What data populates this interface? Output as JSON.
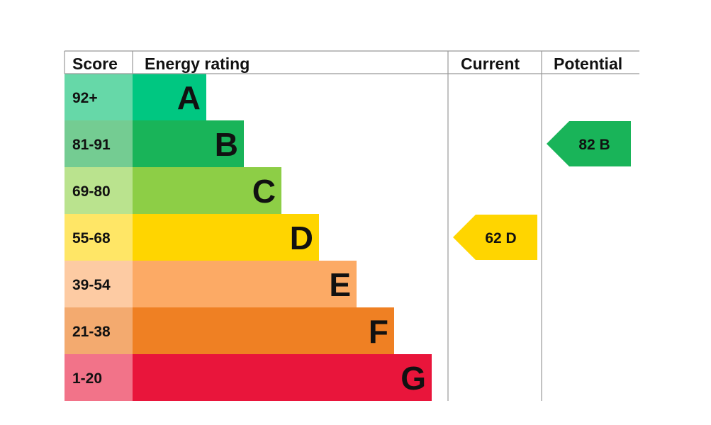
{
  "header": {
    "score": "Score",
    "energy_rating": "Energy rating",
    "current": "Current",
    "potential": "Potential"
  },
  "chart_data": {
    "type": "bar",
    "bands": [
      {
        "letter": "A",
        "range": "92+",
        "color": "#00c781",
        "score_bg": "#66d8a8"
      },
      {
        "letter": "B",
        "range": "81-91",
        "color": "#19b459",
        "score_bg": "#74cc92"
      },
      {
        "letter": "C",
        "range": "69-80",
        "color": "#8dce46",
        "score_bg": "#bae38e"
      },
      {
        "letter": "D",
        "range": "55-68",
        "color": "#ffd500",
        "score_bg": "#ffe666"
      },
      {
        "letter": "E",
        "range": "39-54",
        "color": "#fcaa65",
        "score_bg": "#fdcba3"
      },
      {
        "letter": "F",
        "range": "21-38",
        "color": "#ef8023",
        "score_bg": "#f3aa6f"
      },
      {
        "letter": "G",
        "range": "1-20",
        "color": "#e9153b",
        "score_bg": "#f27389"
      }
    ],
    "current": {
      "value": 62,
      "letter": "D",
      "label": "62  D",
      "color": "#ffd500"
    },
    "potential": {
      "value": 82,
      "letter": "B",
      "label": "82  B",
      "color": "#19b459"
    }
  }
}
